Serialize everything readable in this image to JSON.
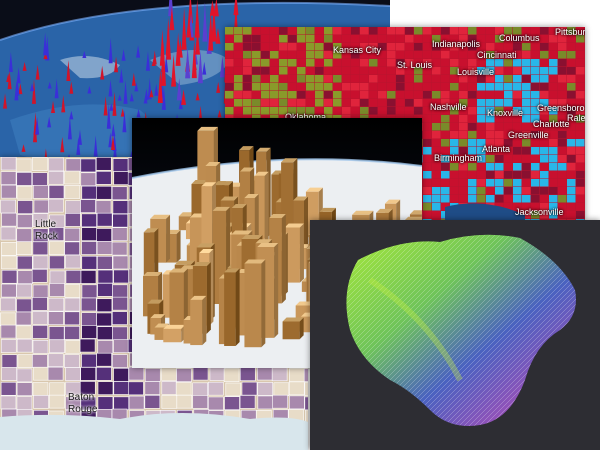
{
  "colors": {
    "ocean": "#2a64a8",
    "space": "#0a0d18",
    "vote_red": "#c8102e",
    "vote_blue": "#29b6e8",
    "vote_olive": "#8a9a2a",
    "purple_dark": "#3e1a5c",
    "purple_light": "#e8dcc8",
    "bar_brown": "#b47a4a",
    "panel_bg": "#2d2d33"
  },
  "election_map": {
    "cities": [
      {
        "name": "Pittsburgh"
      },
      {
        "name": "Columbus"
      },
      {
        "name": "Indianapolis"
      },
      {
        "name": "Cincinnati"
      },
      {
        "name": "Kansas City"
      },
      {
        "name": "St. Louis"
      },
      {
        "name": "Louisville"
      },
      {
        "name": "Oklahoma"
      },
      {
        "name": "Nashville"
      },
      {
        "name": "Knoxville"
      },
      {
        "name": "Greensboro"
      },
      {
        "name": "Raleig"
      },
      {
        "name": "Charlotte"
      },
      {
        "name": "Greenville"
      },
      {
        "name": "Atlanta"
      },
      {
        "name": "Birmingham"
      },
      {
        "name": "Jacksonville"
      }
    ]
  },
  "purple_map": {
    "cities": [
      {
        "name": "Little Rock"
      },
      {
        "name": "Baton Rouge"
      }
    ]
  }
}
